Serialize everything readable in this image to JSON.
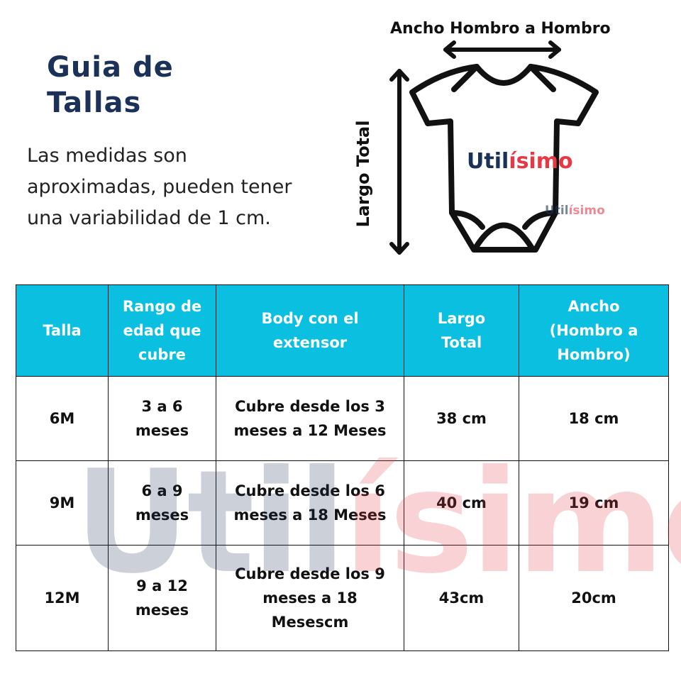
{
  "title": "Guia de Tallas",
  "description": "Las medidas son aproximadas, pueden tener una variabilidad de 1 cm.",
  "diagram": {
    "width_label": "Ancho Hombro a Hombro",
    "length_label": "Largo Total"
  },
  "logo": {
    "part1": "Util",
    "part2": "ísimo"
  },
  "colors": {
    "header": "#0bbfe0",
    "title": "#1c3157",
    "logo_red": "#e63946"
  },
  "table": {
    "headers": [
      "Talla",
      "Rango de edad que cubre",
      "Body con el extensor",
      "Largo Total",
      "Ancho (Hombro a Hombro)"
    ],
    "rows": [
      [
        "6M",
        "3 a 6 meses",
        "Cubre desde los 3 meses a 12 Meses",
        "38 cm",
        "18 cm"
      ],
      [
        "9M",
        "6 a 9 meses",
        "Cubre desde los 6 meses a 18 Meses",
        "40 cm",
        "19 cm"
      ],
      [
        "12M",
        "9 a 12 meses",
        "Cubre desde los 9 meses a 18 Mesescm",
        "43cm",
        "20cm"
      ]
    ]
  }
}
